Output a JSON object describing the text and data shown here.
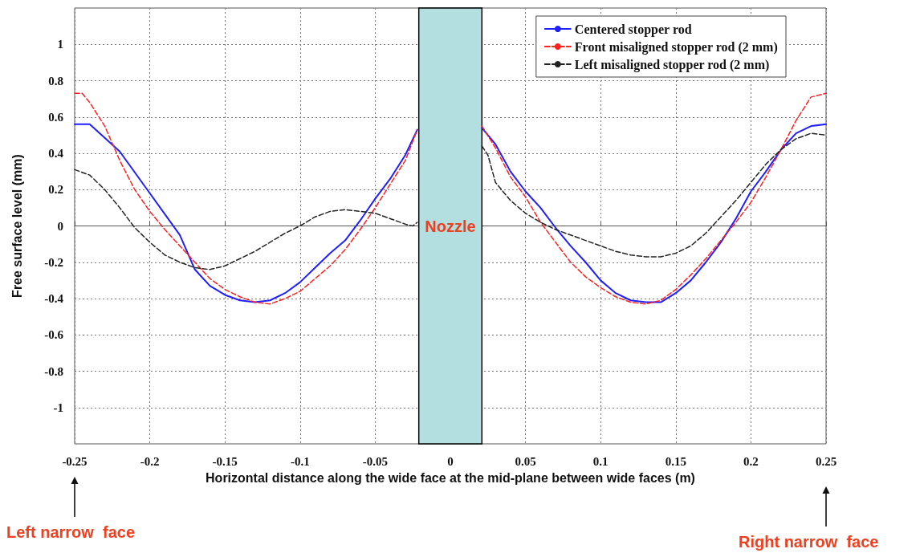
{
  "chart_data": {
    "type": "line",
    "xlabel": "Horizontal distance along the wide face at the mid-plane between wide faces (m)",
    "ylabel": "Free surface level (mm)",
    "xlim": [
      -0.25,
      0.25
    ],
    "xticks": [
      -0.25,
      -0.2,
      -0.15,
      -0.1,
      -0.05,
      0,
      0.05,
      0.1,
      0.15,
      0.2,
      0.25
    ],
    "ylim": [
      -1.2,
      1.2
    ],
    "yticks": [
      -1,
      -0.8,
      -0.6,
      -0.4,
      -0.2,
      0,
      0.2,
      0.4,
      0.6,
      0.8,
      1
    ],
    "grid": true,
    "legend": "top right",
    "marker": "none",
    "bands": [
      {
        "axis": "x",
        "from": -0.021,
        "to": 0.021,
        "label": "Nozzle",
        "color": "#b3dfe0"
      }
    ],
    "annotations": [
      "Left narrow  face",
      "Right narrow  face"
    ],
    "series": [
      {
        "name": "Centered stopper rod",
        "color": "#1f1fff",
        "line_style": "solid",
        "x": [
          -0.25,
          -0.24,
          -0.22,
          -0.2,
          -0.18,
          -0.17,
          -0.16,
          -0.15,
          -0.14,
          -0.13,
          -0.12,
          -0.11,
          -0.1,
          -0.09,
          -0.08,
          -0.07,
          -0.06,
          -0.05,
          -0.04,
          -0.03,
          -0.022,
          0,
          0.021,
          0.03,
          0.04,
          0.05,
          0.06,
          0.07,
          0.08,
          0.09,
          0.1,
          0.11,
          0.12,
          0.13,
          0.14,
          0.15,
          0.16,
          0.17,
          0.18,
          0.19,
          0.2,
          0.21,
          0.22,
          0.23,
          0.24,
          0.25
        ],
        "values": [
          0.56,
          0.56,
          0.41,
          0.18,
          -0.05,
          -0.24,
          -0.33,
          -0.38,
          -0.41,
          -0.42,
          -0.41,
          -0.37,
          -0.31,
          -0.23,
          -0.15,
          -0.08,
          0.03,
          0.15,
          0.26,
          0.39,
          0.53,
          null,
          0.54,
          0.45,
          0.3,
          0.19,
          0.1,
          -0.01,
          -0.11,
          -0.2,
          -0.3,
          -0.37,
          -0.41,
          -0.42,
          -0.42,
          -0.37,
          -0.3,
          -0.2,
          -0.09,
          0.04,
          0.19,
          0.3,
          0.42,
          0.51,
          0.55,
          0.56
        ]
      },
      {
        "name": "Front misaligned stopper rod (2 mm)",
        "color": "#ff2020",
        "line_style": "dashed",
        "x": [
          -0.25,
          -0.245,
          -0.24,
          -0.23,
          -0.22,
          -0.21,
          -0.2,
          -0.19,
          -0.18,
          -0.17,
          -0.16,
          -0.15,
          -0.14,
          -0.13,
          -0.12,
          -0.11,
          -0.1,
          -0.09,
          -0.08,
          -0.07,
          -0.06,
          -0.05,
          -0.04,
          -0.03,
          -0.022,
          0,
          0.021,
          0.03,
          0.04,
          0.05,
          0.06,
          0.07,
          0.08,
          0.09,
          0.1,
          0.11,
          0.12,
          0.13,
          0.14,
          0.15,
          0.16,
          0.17,
          0.18,
          0.19,
          0.2,
          0.21,
          0.22,
          0.23,
          0.24,
          0.25
        ],
        "values": [
          0.73,
          0.73,
          0.68,
          0.55,
          0.36,
          0.2,
          0.08,
          -0.02,
          -0.11,
          -0.2,
          -0.29,
          -0.35,
          -0.39,
          -0.42,
          -0.43,
          -0.4,
          -0.36,
          -0.29,
          -0.22,
          -0.13,
          -0.02,
          0.1,
          0.23,
          0.36,
          0.53,
          null,
          0.55,
          0.43,
          0.27,
          0.16,
          0.02,
          -0.09,
          -0.2,
          -0.28,
          -0.34,
          -0.39,
          -0.42,
          -0.43,
          -0.41,
          -0.35,
          -0.27,
          -0.18,
          -0.08,
          0.02,
          0.13,
          0.27,
          0.42,
          0.58,
          0.71,
          0.73
        ]
      },
      {
        "name": "Left misaligned stopper rod (2 mm)",
        "color": "#222222",
        "line_style": "dashed",
        "x": [
          -0.25,
          -0.24,
          -0.23,
          -0.22,
          -0.21,
          -0.2,
          -0.19,
          -0.18,
          -0.17,
          -0.16,
          -0.15,
          -0.14,
          -0.13,
          -0.12,
          -0.11,
          -0.1,
          -0.09,
          -0.08,
          -0.07,
          -0.06,
          -0.05,
          -0.04,
          -0.03,
          -0.025,
          -0.022,
          0,
          0.021,
          0.025,
          0.03,
          0.04,
          0.05,
          0.06,
          0.07,
          0.08,
          0.09,
          0.1,
          0.11,
          0.12,
          0.13,
          0.14,
          0.15,
          0.16,
          0.17,
          0.18,
          0.19,
          0.2,
          0.21,
          0.22,
          0.23,
          0.24,
          0.25
        ],
        "values": [
          0.31,
          0.28,
          0.2,
          0.1,
          -0.01,
          -0.09,
          -0.16,
          -0.2,
          -0.23,
          -0.24,
          -0.22,
          -0.18,
          -0.14,
          -0.09,
          -0.04,
          0,
          0.05,
          0.08,
          0.09,
          0.08,
          0.07,
          0.04,
          0.01,
          0,
          0.02,
          null,
          0.44,
          0.39,
          0.24,
          0.14,
          0.07,
          0.02,
          -0.02,
          -0.05,
          -0.08,
          -0.11,
          -0.14,
          -0.16,
          -0.17,
          -0.17,
          -0.15,
          -0.11,
          -0.04,
          0.05,
          0.14,
          0.24,
          0.34,
          0.42,
          0.48,
          0.51,
          0.5
        ]
      }
    ]
  }
}
